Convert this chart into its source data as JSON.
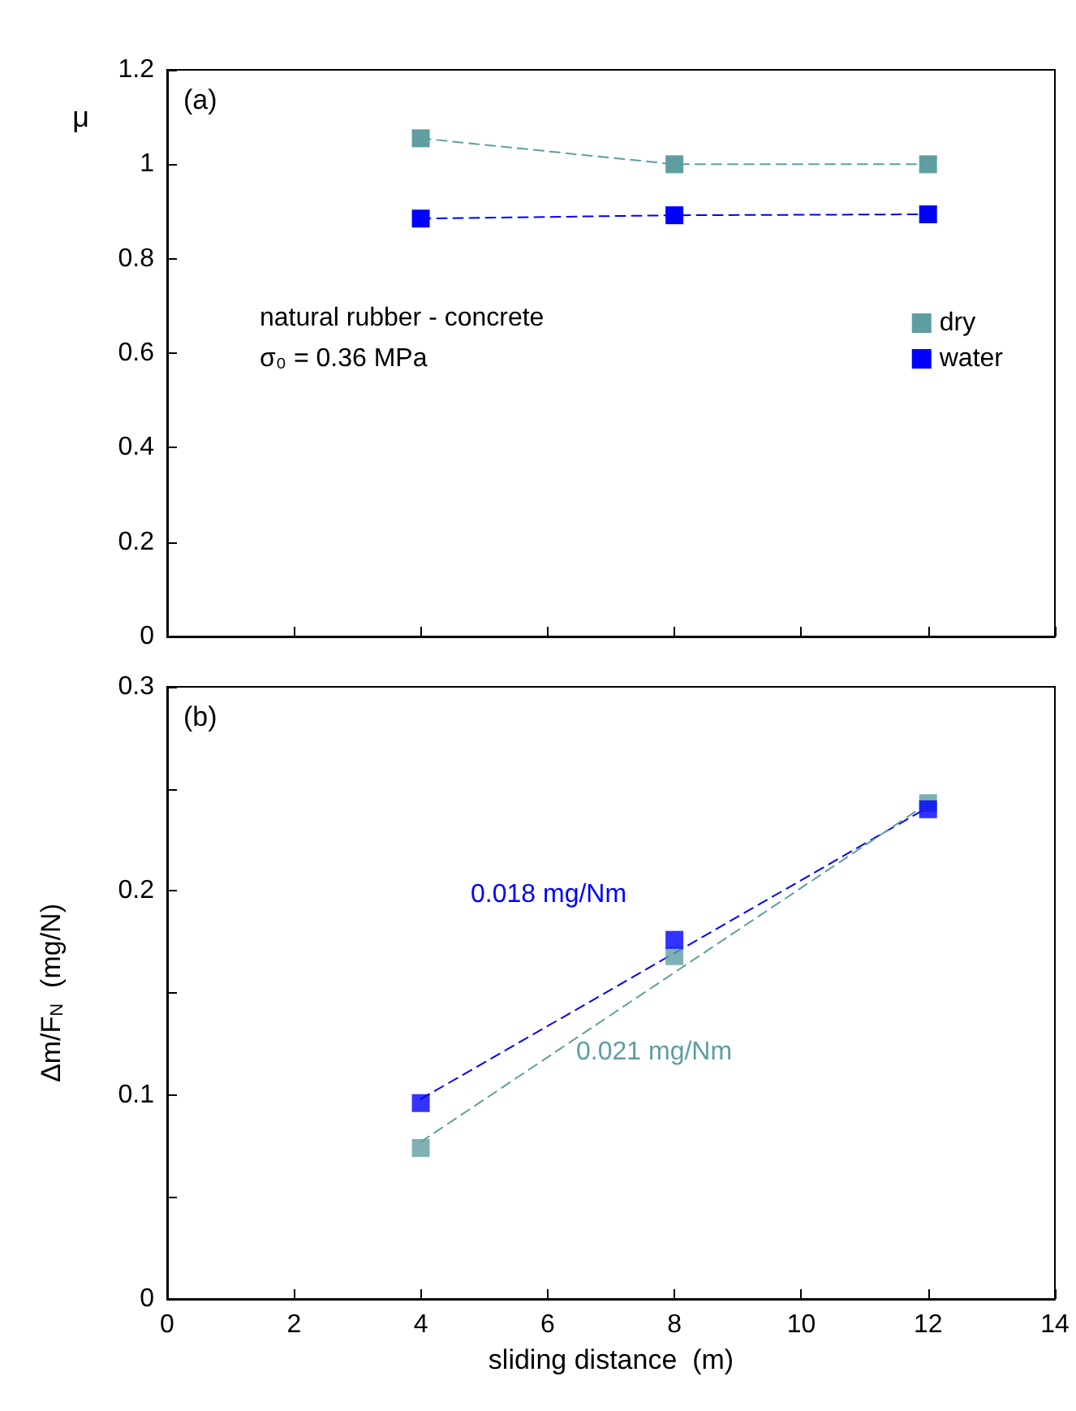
{
  "chart_data": [
    {
      "type": "line",
      "ylabel": "μ",
      "xlim": [
        0,
        14
      ],
      "xticks": [
        0,
        2,
        4,
        6,
        8,
        10,
        12,
        14
      ],
      "ylim": [
        0,
        1.2
      ],
      "yticks": [
        0,
        0.2,
        0.4,
        0.6,
        0.8,
        1,
        1.2
      ],
      "tick_labels": "y",
      "grid": false,
      "legend": "right",
      "marker": "square",
      "line_style": "dashed",
      "annotations": [
        "(a)",
        "natural rubber - concrete",
        "σ₀ = 0.36 MPa"
      ],
      "series": [
        {
          "name": "dry",
          "color": "#5f9ea0",
          "x": [
            4,
            8,
            12
          ],
          "values": [
            1.055,
            1.0,
            1.0
          ]
        },
        {
          "name": "water",
          "color": "#0000ff",
          "x": [
            4,
            8,
            12
          ],
          "values": [
            0.885,
            0.892,
            0.894
          ]
        }
      ]
    },
    {
      "type": "scatter",
      "xlabel": "sliding distance  (m)",
      "ylabel": "Δm/F$_{N}$  (mg/N)",
      "xlim": [
        0,
        14
      ],
      "xticks": [
        0,
        2,
        4,
        6,
        8,
        10,
        12,
        14
      ],
      "ylim": [
        0,
        0.3
      ],
      "yticks": [
        0,
        {
          "value": 0.05,
          "label": null
        },
        0.1,
        {
          "value": 0.15,
          "label": null
        },
        0.2,
        {
          "value": 0.25,
          "label": null
        },
        0.3
      ],
      "grid": false,
      "legend": false,
      "marker": "square",
      "annotations": [
        "(b)",
        "0.018 mg/Nm",
        "0.021 mg/Nm"
      ],
      "series": [
        {
          "color": "#5f9ea0",
          "x": [
            4,
            8,
            12
          ],
          "values": [
            0.074,
            0.168,
            0.243
          ]
        },
        {
          "color": "#0000ff",
          "x": [
            4,
            8,
            12
          ],
          "values": [
            0.096,
            0.176,
            0.24
          ]
        },
        {
          "type": "line",
          "color": "#0000ff",
          "x": [
            4,
            12
          ],
          "values": [
            0.098,
            0.241
          ],
          "marker": "none",
          "line_style": "dashed"
        },
        {
          "type": "line",
          "color": "#5f9ea0",
          "x": [
            4,
            12
          ],
          "values": [
            0.077,
            0.243
          ],
          "marker": "none",
          "line_style": "dashed"
        }
      ]
    }
  ]
}
